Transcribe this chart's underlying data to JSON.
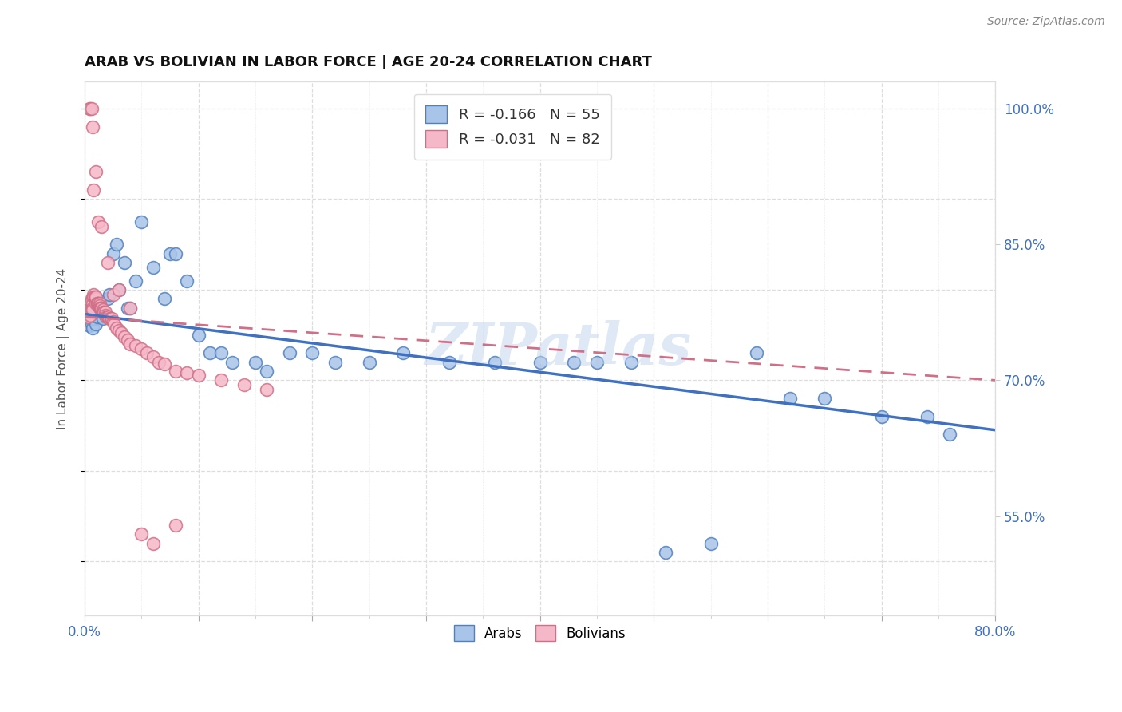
{
  "title": "ARAB VS BOLIVIAN IN LABOR FORCE | AGE 20-24 CORRELATION CHART",
  "source": "Source: ZipAtlas.com",
  "ylabel": "In Labor Force | Age 20-24",
  "xlim": [
    0.0,
    0.8
  ],
  "ylim": [
    0.44,
    1.03
  ],
  "xtick_positions": [
    0.0,
    0.1,
    0.2,
    0.3,
    0.4,
    0.5,
    0.6,
    0.7,
    0.8
  ],
  "xtick_labels": [
    "0.0%",
    "",
    "",
    "",
    "",
    "",
    "",
    "",
    "80.0%"
  ],
  "yticks_right": [
    0.55,
    0.7,
    0.85,
    1.0
  ],
  "ytick_labels_right": [
    "55.0%",
    "70.0%",
    "85.0%",
    "100.0%"
  ],
  "watermark": "ZIPatlas",
  "legend_arab_text": "R = -0.166   N = 55",
  "legend_bolivian_text": "R = -0.031   N = 82",
  "arab_color": "#A8C4E8",
  "arab_edge_color": "#5080C0",
  "bolivian_color": "#F5B8C8",
  "bolivian_edge_color": "#D07088",
  "arab_line_color": "#4070C0",
  "bolivian_line_color": "#D07088",
  "arab_x": [
    0.002,
    0.003,
    0.004,
    0.005,
    0.006,
    0.007,
    0.008,
    0.009,
    0.01,
    0.011,
    0.012,
    0.013,
    0.015,
    0.016,
    0.018,
    0.02,
    0.022,
    0.025,
    0.028,
    0.03,
    0.035,
    0.038,
    0.04,
    0.045,
    0.05,
    0.06,
    0.07,
    0.075,
    0.08,
    0.09,
    0.1,
    0.11,
    0.12,
    0.13,
    0.15,
    0.16,
    0.18,
    0.2,
    0.22,
    0.25,
    0.28,
    0.32,
    0.36,
    0.4,
    0.43,
    0.45,
    0.48,
    0.51,
    0.55,
    0.59,
    0.62,
    0.65,
    0.7,
    0.74,
    0.76
  ],
  "arab_y": [
    0.775,
    0.77,
    0.76,
    0.768,
    0.762,
    0.758,
    0.768,
    0.772,
    0.762,
    0.77,
    0.778,
    0.782,
    0.775,
    0.768,
    0.772,
    0.79,
    0.795,
    0.84,
    0.85,
    0.8,
    0.83,
    0.78,
    0.78,
    0.81,
    0.875,
    0.825,
    0.79,
    0.84,
    0.84,
    0.81,
    0.75,
    0.73,
    0.73,
    0.72,
    0.72,
    0.71,
    0.73,
    0.73,
    0.72,
    0.72,
    0.73,
    0.72,
    0.72,
    0.72,
    0.72,
    0.72,
    0.72,
    0.51,
    0.52,
    0.73,
    0.68,
    0.68,
    0.66,
    0.66,
    0.64
  ],
  "bolivian_x": [
    0.002,
    0.003,
    0.003,
    0.004,
    0.004,
    0.005,
    0.005,
    0.005,
    0.006,
    0.006,
    0.006,
    0.007,
    0.007,
    0.007,
    0.008,
    0.008,
    0.009,
    0.009,
    0.01,
    0.01,
    0.01,
    0.011,
    0.011,
    0.012,
    0.012,
    0.012,
    0.013,
    0.013,
    0.013,
    0.014,
    0.014,
    0.015,
    0.015,
    0.015,
    0.016,
    0.016,
    0.017,
    0.017,
    0.018,
    0.018,
    0.019,
    0.02,
    0.02,
    0.021,
    0.022,
    0.023,
    0.024,
    0.025,
    0.026,
    0.028,
    0.03,
    0.032,
    0.035,
    0.038,
    0.04,
    0.045,
    0.05,
    0.055,
    0.06,
    0.065,
    0.07,
    0.08,
    0.09,
    0.1,
    0.12,
    0.14,
    0.16,
    0.004,
    0.005,
    0.006,
    0.007,
    0.008,
    0.01,
    0.012,
    0.015,
    0.02,
    0.025,
    0.03,
    0.04,
    0.05,
    0.06,
    0.08
  ],
  "bolivian_y": [
    0.775,
    0.77,
    0.778,
    0.775,
    0.778,
    0.778,
    0.775,
    0.772,
    0.79,
    0.788,
    0.778,
    0.785,
    0.78,
    0.778,
    0.795,
    0.792,
    0.79,
    0.792,
    0.79,
    0.785,
    0.792,
    0.785,
    0.785,
    0.785,
    0.782,
    0.785,
    0.785,
    0.782,
    0.78,
    0.78,
    0.78,
    0.78,
    0.778,
    0.78,
    0.778,
    0.775,
    0.775,
    0.775,
    0.775,
    0.772,
    0.77,
    0.77,
    0.77,
    0.77,
    0.768,
    0.768,
    0.768,
    0.765,
    0.762,
    0.758,
    0.755,
    0.752,
    0.748,
    0.744,
    0.74,
    0.738,
    0.735,
    0.73,
    0.726,
    0.72,
    0.718,
    0.71,
    0.708,
    0.706,
    0.7,
    0.695,
    0.69,
    1.0,
    1.0,
    1.0,
    0.98,
    0.91,
    0.93,
    0.875,
    0.87,
    0.83,
    0.795,
    0.8,
    0.78,
    0.53,
    0.52,
    0.54
  ]
}
